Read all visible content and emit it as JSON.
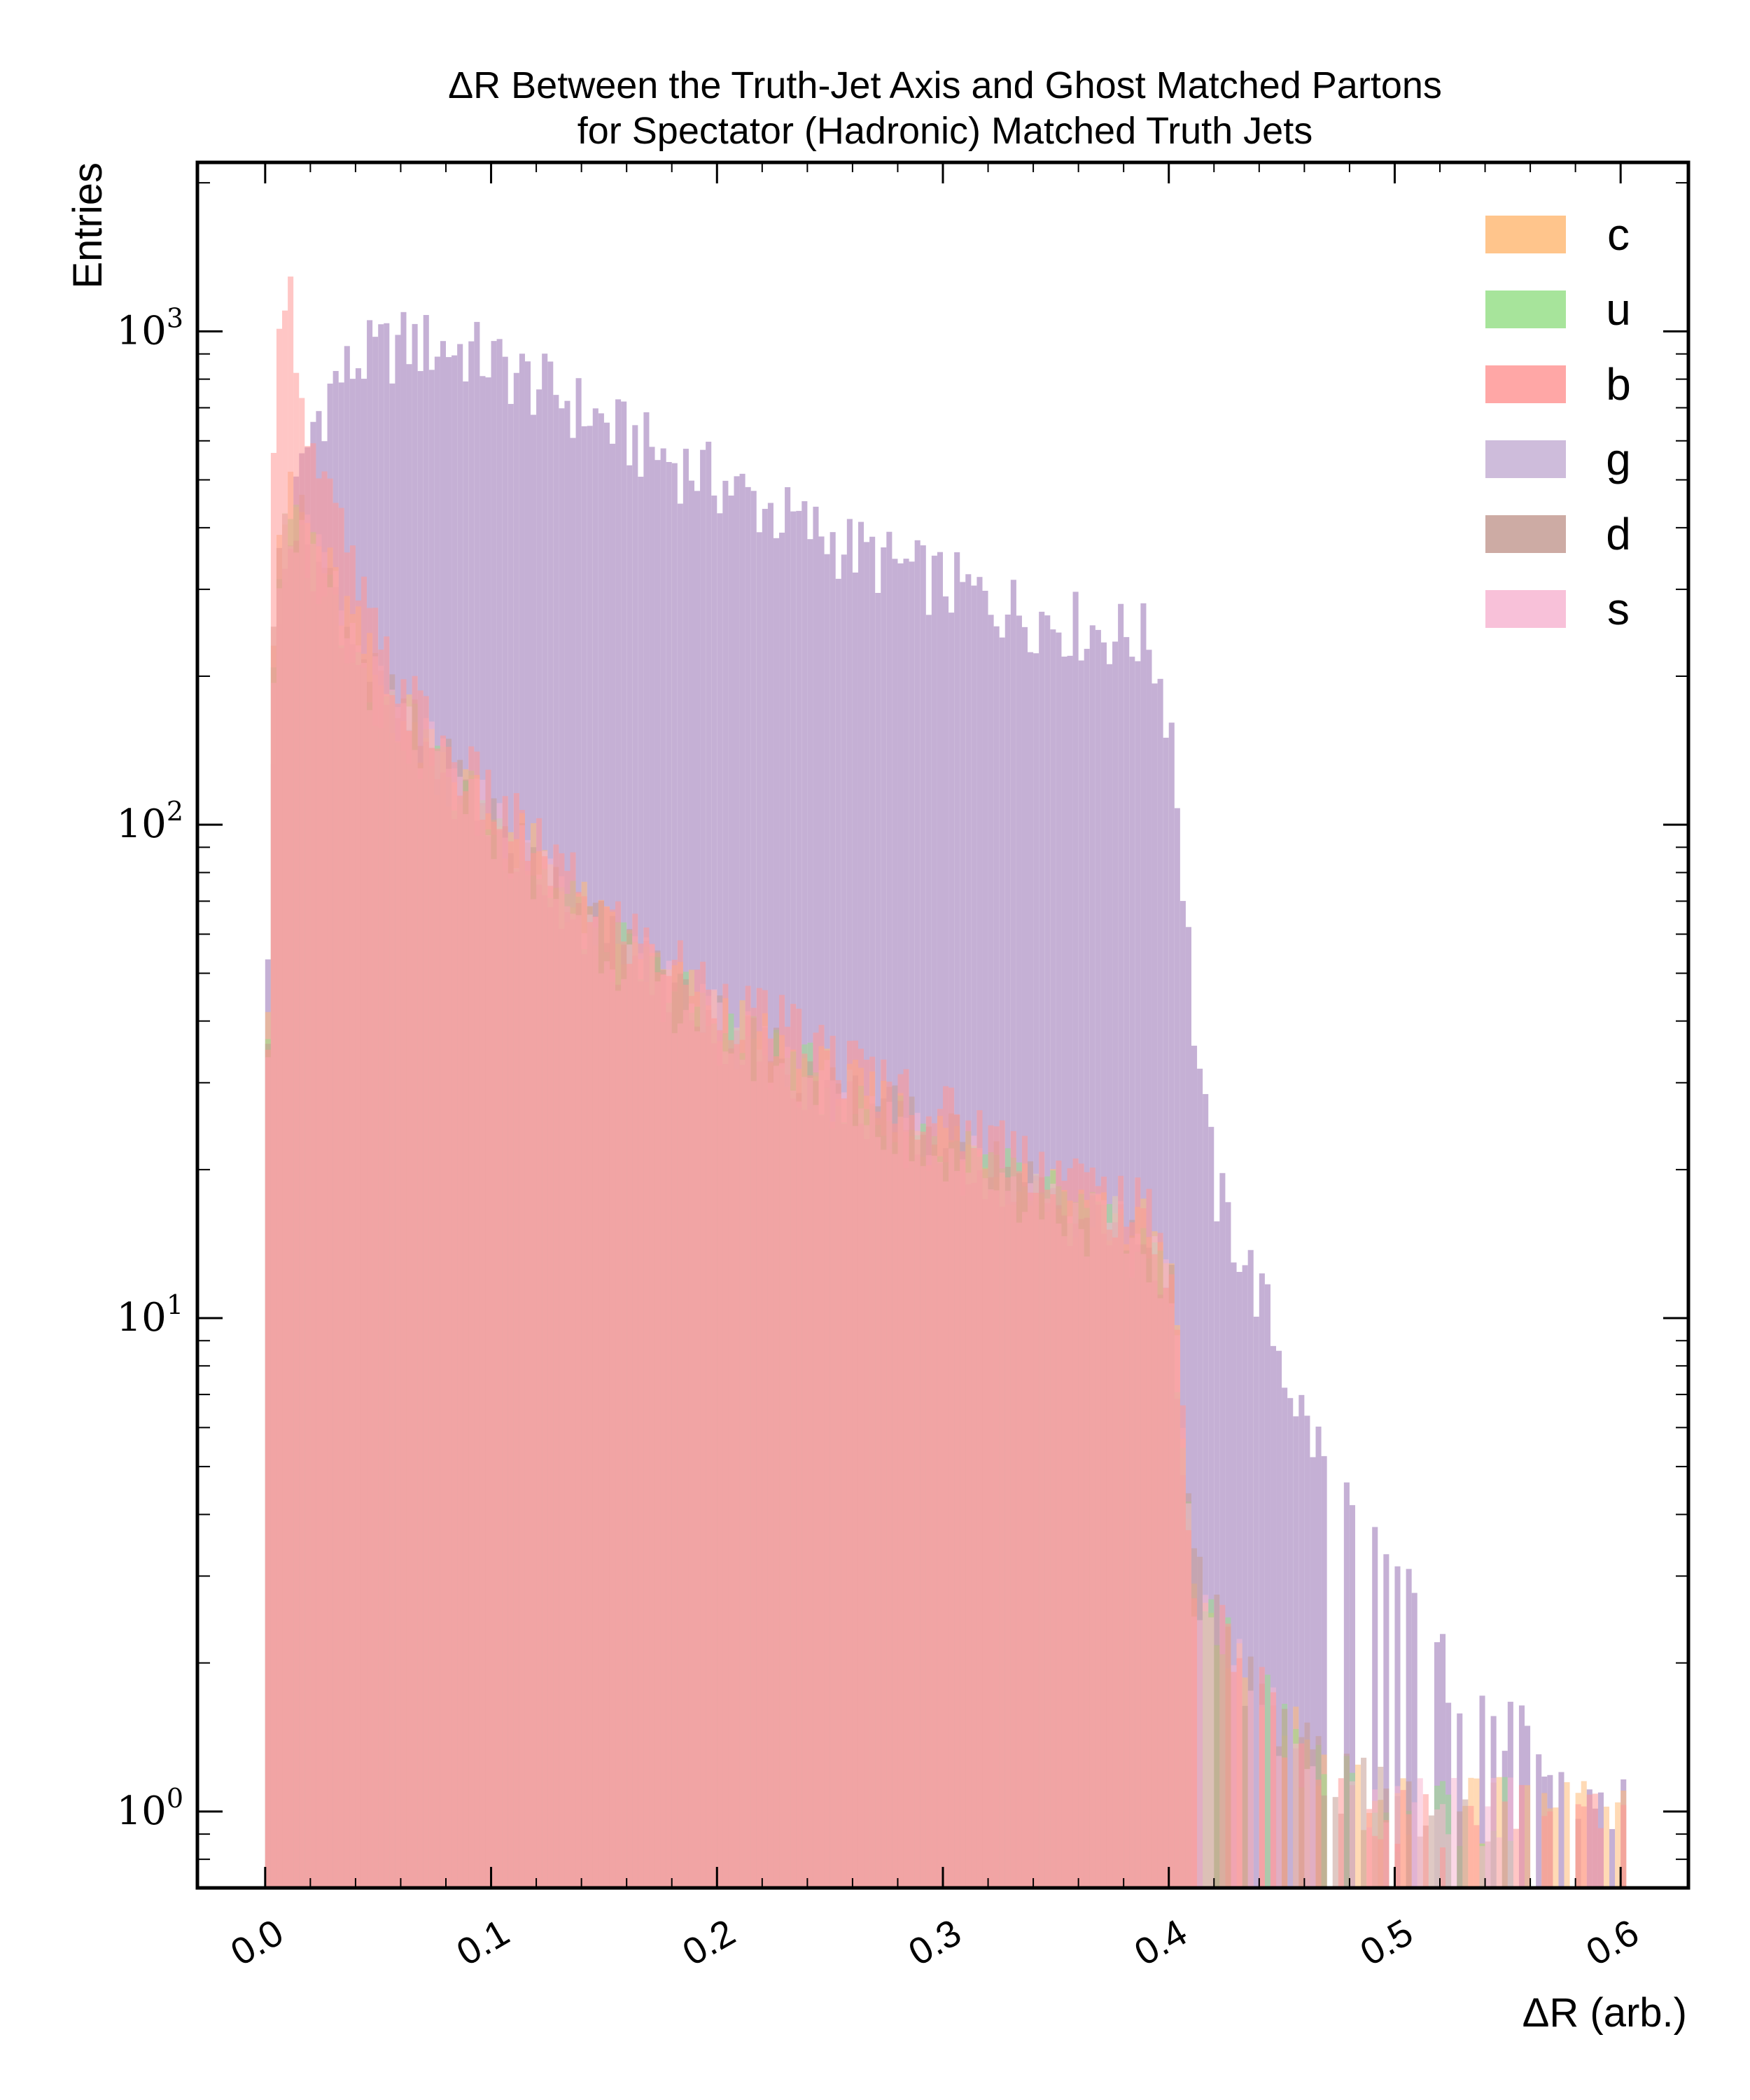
{
  "chart_data": {
    "type": "histogram",
    "title_line1": "ΔR Between the Truth-Jet Axis and Ghost Matched Partons",
    "title_line2": "for Spectator (Hadronic) Matched Truth Jets",
    "xlabel": "ΔR (arb.)",
    "ylabel": "Entries",
    "xlim": [
      -0.03,
      0.63
    ],
    "ylim": [
      0.7,
      2200
    ],
    "yscale": "log",
    "grid": false,
    "legend_position": "top-right",
    "x_ticks": [
      {
        "value": 0.0,
        "label": "0.0"
      },
      {
        "value": 0.1,
        "label": "0.1"
      },
      {
        "value": 0.2,
        "label": "0.2"
      },
      {
        "value": 0.3,
        "label": "0.3"
      },
      {
        "value": 0.4,
        "label": "0.4"
      },
      {
        "value": 0.5,
        "label": "0.5"
      },
      {
        "value": 0.6,
        "label": "0.6"
      }
    ],
    "y_ticks": [
      {
        "value": 1,
        "base": "10",
        "exp": "0"
      },
      {
        "value": 10,
        "base": "10",
        "exp": "1"
      },
      {
        "value": 100,
        "base": "10",
        "exp": "2"
      },
      {
        "value": 1000,
        "base": "10",
        "exp": "3"
      }
    ],
    "bin_width": 0.0025,
    "series": [
      {
        "name": "c",
        "color": "#ffbb78",
        "points": [
          [
            0.0,
            50
          ],
          [
            0.003,
            380
          ],
          [
            0.006,
            420
          ],
          [
            0.01,
            450
          ],
          [
            0.015,
            420
          ],
          [
            0.02,
            380
          ],
          [
            0.03,
            300
          ],
          [
            0.05,
            190
          ],
          [
            0.08,
            130
          ],
          [
            0.1,
            105
          ],
          [
            0.15,
            60
          ],
          [
            0.2,
            40
          ],
          [
            0.25,
            30
          ],
          [
            0.3,
            23
          ],
          [
            0.35,
            18
          ],
          [
            0.39,
            15
          ],
          [
            0.4,
            12
          ],
          [
            0.41,
            3
          ],
          [
            0.43,
            2
          ],
          [
            0.46,
            1.3
          ],
          [
            0.5,
            1
          ],
          [
            0.55,
            1
          ],
          [
            0.6,
            1
          ]
        ]
      },
      {
        "name": "u",
        "color": "#98df8a",
        "points": [
          [
            0.0,
            40
          ],
          [
            0.003,
            300
          ],
          [
            0.006,
            360
          ],
          [
            0.01,
            400
          ],
          [
            0.015,
            380
          ],
          [
            0.02,
            350
          ],
          [
            0.03,
            280
          ],
          [
            0.05,
            180
          ],
          [
            0.08,
            125
          ],
          [
            0.1,
            100
          ],
          [
            0.15,
            58
          ],
          [
            0.2,
            39
          ],
          [
            0.25,
            29
          ],
          [
            0.3,
            22
          ],
          [
            0.35,
            17
          ],
          [
            0.39,
            14
          ],
          [
            0.4,
            11
          ],
          [
            0.41,
            3
          ],
          [
            0.43,
            2
          ],
          [
            0.46,
            1.3
          ],
          [
            0.5,
            1
          ],
          [
            0.55,
            1
          ]
        ]
      },
      {
        "name": "b",
        "color": "#ff9896",
        "points": [
          [
            0.0,
            30
          ],
          [
            0.003,
            900
          ],
          [
            0.006,
            1400
          ],
          [
            0.009,
            1250
          ],
          [
            0.012,
            1000
          ],
          [
            0.015,
            800
          ],
          [
            0.02,
            560
          ],
          [
            0.025,
            480
          ],
          [
            0.03,
            420
          ],
          [
            0.05,
            220
          ],
          [
            0.08,
            140
          ],
          [
            0.1,
            110
          ],
          [
            0.15,
            65
          ],
          [
            0.2,
            45
          ],
          [
            0.25,
            34
          ],
          [
            0.3,
            26
          ],
          [
            0.35,
            20
          ],
          [
            0.39,
            16
          ],
          [
            0.4,
            13
          ],
          [
            0.41,
            3
          ],
          [
            0.43,
            2
          ],
          [
            0.46,
            1.3
          ],
          [
            0.5,
            1
          ],
          [
            0.55,
            1
          ],
          [
            0.6,
            1
          ]
        ]
      },
      {
        "name": "g",
        "color": "#c5b0d5",
        "points": [
          [
            0.0,
            60
          ],
          [
            0.005,
            250
          ],
          [
            0.01,
            400
          ],
          [
            0.015,
            520
          ],
          [
            0.02,
            650
          ],
          [
            0.025,
            720
          ],
          [
            0.03,
            800
          ],
          [
            0.045,
            900
          ],
          [
            0.06,
            950
          ],
          [
            0.075,
            940
          ],
          [
            0.09,
            910
          ],
          [
            0.1,
            870
          ],
          [
            0.125,
            760
          ],
          [
            0.15,
            650
          ],
          [
            0.175,
            560
          ],
          [
            0.2,
            500
          ],
          [
            0.225,
            430
          ],
          [
            0.25,
            380
          ],
          [
            0.275,
            340
          ],
          [
            0.3,
            310
          ],
          [
            0.325,
            280
          ],
          [
            0.35,
            260
          ],
          [
            0.375,
            245
          ],
          [
            0.39,
            240
          ],
          [
            0.4,
            160
          ],
          [
            0.405,
            80
          ],
          [
            0.41,
            40
          ],
          [
            0.415,
            25
          ],
          [
            0.42,
            18
          ],
          [
            0.43,
            14
          ],
          [
            0.44,
            11
          ],
          [
            0.45,
            8
          ],
          [
            0.46,
            6
          ],
          [
            0.47,
            5
          ],
          [
            0.48,
            4
          ],
          [
            0.49,
            3.5
          ],
          [
            0.5,
            3
          ],
          [
            0.52,
            2
          ],
          [
            0.55,
            1.5
          ],
          [
            0.58,
            1
          ],
          [
            0.6,
            1
          ]
        ]
      },
      {
        "name": "d",
        "color": "#c49c94",
        "points": [
          [
            0.0,
            40
          ],
          [
            0.003,
            320
          ],
          [
            0.006,
            380
          ],
          [
            0.01,
            420
          ],
          [
            0.015,
            400
          ],
          [
            0.02,
            360
          ],
          [
            0.03,
            290
          ],
          [
            0.05,
            185
          ],
          [
            0.08,
            128
          ],
          [
            0.1,
            102
          ],
          [
            0.15,
            59
          ],
          [
            0.2,
            40
          ],
          [
            0.25,
            29
          ],
          [
            0.3,
            23
          ],
          [
            0.35,
            17
          ],
          [
            0.39,
            14
          ],
          [
            0.4,
            11
          ],
          [
            0.41,
            3
          ],
          [
            0.43,
            2
          ],
          [
            0.46,
            1.3
          ],
          [
            0.5,
            1
          ],
          [
            0.55,
            1
          ]
        ]
      },
      {
        "name": "s",
        "color": "#f7b6d2",
        "points": [
          [
            0.0,
            40
          ],
          [
            0.003,
            310
          ],
          [
            0.006,
            370
          ],
          [
            0.01,
            410
          ],
          [
            0.015,
            390
          ],
          [
            0.02,
            350
          ],
          [
            0.03,
            285
          ],
          [
            0.05,
            182
          ],
          [
            0.08,
            126
          ],
          [
            0.1,
            101
          ],
          [
            0.15,
            58
          ],
          [
            0.2,
            39
          ],
          [
            0.25,
            29
          ],
          [
            0.3,
            22
          ],
          [
            0.35,
            17
          ],
          [
            0.39,
            14
          ],
          [
            0.4,
            11
          ],
          [
            0.41,
            3
          ],
          [
            0.43,
            2
          ],
          [
            0.46,
            1.3
          ],
          [
            0.5,
            1
          ],
          [
            0.55,
            1
          ]
        ]
      }
    ]
  }
}
